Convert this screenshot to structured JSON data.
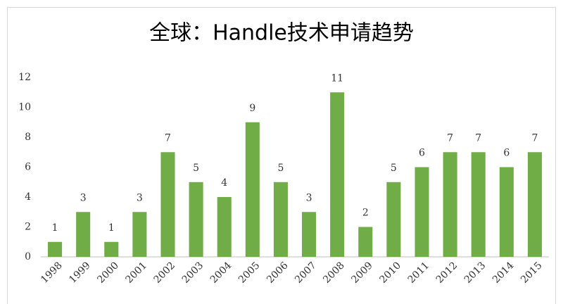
{
  "chart_data": {
    "type": "bar",
    "title": "全球：Handle技术申请趋势",
    "categories": [
      "1998",
      "1999",
      "2000",
      "2001",
      "2002",
      "2003",
      "2004",
      "2005",
      "2006",
      "2007",
      "2008",
      "2009",
      "2010",
      "2011",
      "2012",
      "2013",
      "2014",
      "2015"
    ],
    "values": [
      1,
      3,
      1,
      3,
      7,
      5,
      4,
      9,
      5,
      3,
      11,
      2,
      5,
      6,
      7,
      7,
      6,
      7
    ],
    "color": "#70ad47",
    "ylim": [
      0,
      12
    ],
    "yticks": [
      0,
      2,
      4,
      6,
      8,
      10,
      12
    ],
    "grid": false
  }
}
